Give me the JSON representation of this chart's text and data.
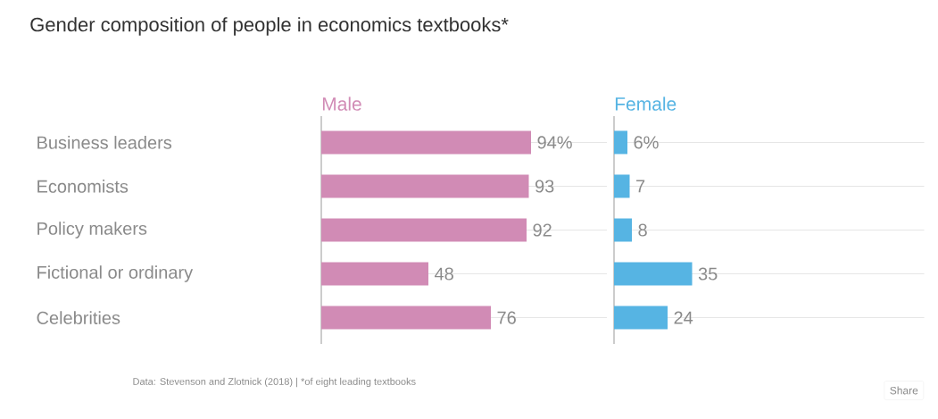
{
  "chart_data": [
    {
      "type": "bar",
      "orientation": "horizontal",
      "title": "Gender composition of people in economics textbooks*",
      "categories": [
        "Business leaders",
        "Economists",
        "Policy makers",
        "Fictional or ordinary",
        "Celebrities"
      ],
      "series": [
        {
          "name": "Male",
          "color": "#d18bb5",
          "values": [
            94,
            93,
            92,
            48,
            76
          ],
          "value_labels": [
            "94%",
            "93",
            "92",
            "48",
            "76"
          ]
        }
      ],
      "xlim": [
        0,
        128
      ],
      "grid": "y",
      "tick_labels": "y",
      "annotations": [
        "Data:  Stevenson and Zlotnick (2018) | *of eight leading textbooks",
        "Share"
      ]
    },
    {
      "type": "bar",
      "orientation": "horizontal",
      "categories": [
        null,
        null,
        null,
        null,
        null
      ],
      "series": [
        {
          "name": "Female",
          "color": "#56b4e3",
          "values": [
            6,
            7,
            8,
            35,
            24
          ],
          "value_labels": [
            "6%",
            "7",
            "8",
            "35",
            "24"
          ]
        }
      ],
      "xlim": [
        0,
        139
      ],
      "grid": "y",
      "tick_labels": false
    }
  ]
}
